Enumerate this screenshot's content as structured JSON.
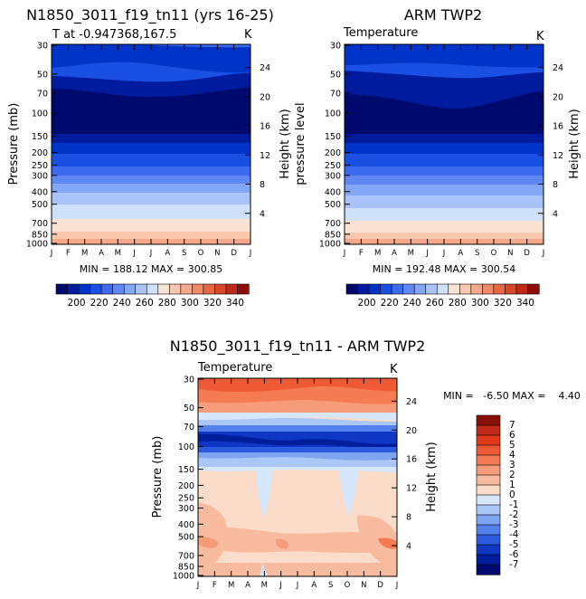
{
  "chart_data": [
    {
      "type": "heatmap",
      "title": "N1850_3011_f19_tn11 (yrs 16-25)",
      "subtitle": "T at -0.947368,167.5",
      "units": "K",
      "ylabel": "Pressure (mb)",
      "y2label": "Height (km)",
      "x_ticks": [
        "J",
        "F",
        "M",
        "A",
        "M",
        "J",
        "J",
        "A",
        "S",
        "O",
        "N",
        "D",
        "J"
      ],
      "pressure_ticks": [
        "30",
        "50",
        "70",
        "100",
        "150",
        "200",
        "250",
        "300",
        "400",
        "500",
        "700",
        "850",
        "1000"
      ],
      "height_ticks": [
        "24",
        "20",
        "16",
        "12",
        "8",
        "4"
      ],
      "stats": "MIN = 188.12 MAX = 300.85",
      "min": 188.12,
      "max": 300.85
    },
    {
      "type": "heatmap",
      "title": "ARM TWP2",
      "subtitle": "Temperature",
      "units": "K",
      "ylabel": "pressure level",
      "y2label": "Height (km)",
      "x_ticks": [
        "J",
        "F",
        "M",
        "A",
        "M",
        "J",
        "J",
        "A",
        "S",
        "O",
        "N",
        "D",
        "J"
      ],
      "pressure_ticks": [
        "30",
        "50",
        "70",
        "100",
        "150",
        "200",
        "250",
        "300",
        "400",
        "500",
        "700",
        "850",
        "1000"
      ],
      "height_ticks": [
        "24",
        "20",
        "16",
        "12",
        "8",
        "4"
      ],
      "stats": "MIN = 192.48 MAX = 300.54",
      "min": 192.48,
      "max": 300.54
    },
    {
      "type": "heatmap",
      "title": "N1850_3011_f19_tn11 - ARM TWP2",
      "subtitle": "Temperature",
      "units": "K",
      "ylabel": "Pressure (mb)",
      "y2label": "Height (km)",
      "x_ticks": [
        "J",
        "F",
        "M",
        "A",
        "M",
        "J",
        "J",
        "A",
        "S",
        "O",
        "N",
        "D",
        "J"
      ],
      "pressure_ticks": [
        "30",
        "50",
        "70",
        "100",
        "150",
        "200",
        "250",
        "300",
        "400",
        "500",
        "700",
        "850",
        "1000"
      ],
      "height_ticks": [
        "24",
        "20",
        "16",
        "12",
        "8",
        "4"
      ],
      "stats": "MIN =   -6.50 MAX =    4.40",
      "min": -6.5,
      "max": 4.4
    }
  ],
  "colorbar_abs": {
    "labels": [
      "200",
      "220",
      "240",
      "260",
      "280",
      "300",
      "320",
      "340"
    ],
    "colors": [
      "#000a6e",
      "#001b9e",
      "#0033c8",
      "#1a4fe3",
      "#3c6bf0",
      "#5f88f4",
      "#84a6f7",
      "#a9c3f9",
      "#cfe0fb",
      "#fbe3d3",
      "#f8c7ae",
      "#f5a98a",
      "#f08a66",
      "#e86845",
      "#d9472a",
      "#c02818",
      "#8c0f08"
    ]
  },
  "colorbar_diff": {
    "labels": [
      "7",
      "6",
      "5",
      "4",
      "3",
      "2",
      "1",
      "0",
      "-1",
      "-2",
      "-3",
      "-4",
      "-5",
      "-6",
      "-7"
    ],
    "colors": [
      "#8c0f08",
      "#c02818",
      "#e0391c",
      "#ee5a35",
      "#f47b52",
      "#f69c7a",
      "#f8bb9f",
      "#fbdcc8",
      "#d6e6fb",
      "#aac7f7",
      "#7fa4f2",
      "#5480ec",
      "#2d5be0",
      "#0f37c4",
      "#001d9c",
      "#000a70"
    ]
  }
}
